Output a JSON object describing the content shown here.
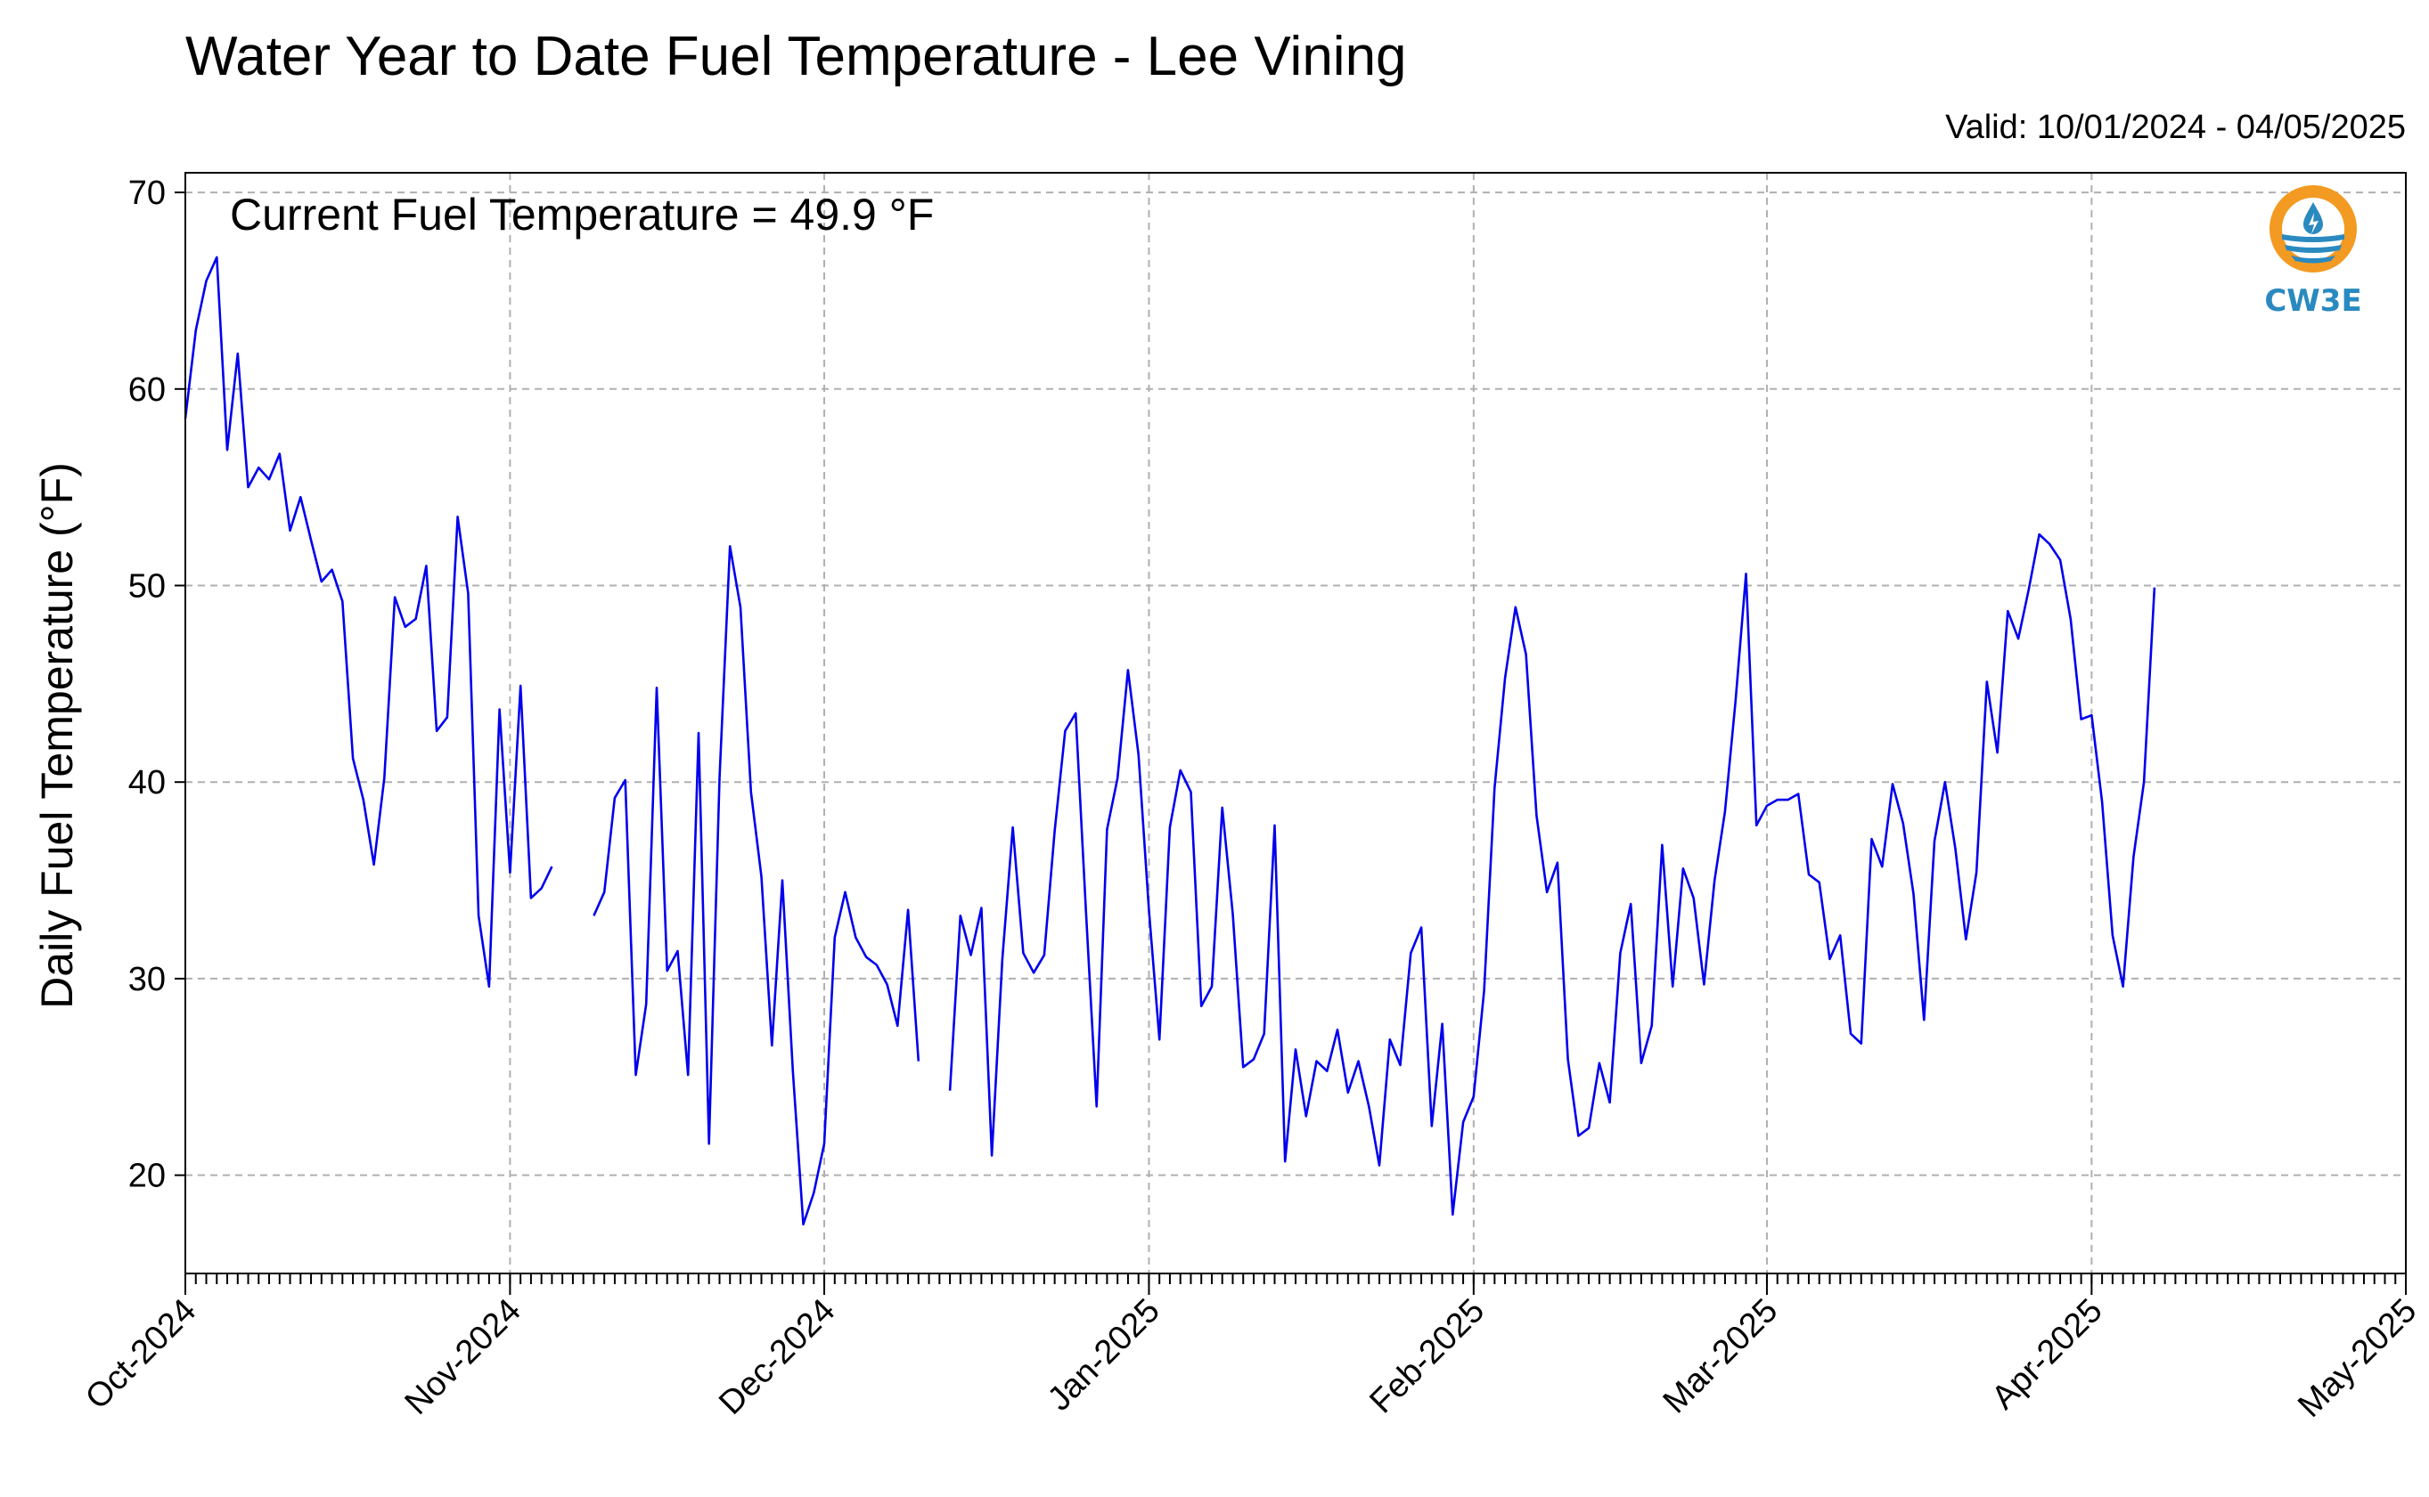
{
  "chart_data": {
    "type": "line",
    "title": "Water Year to Date Fuel Temperature - Lee Vining",
    "subtitle": "Valid: 10/01/2024 - 04/05/2025",
    "annotation": "Current Fuel Temperature = 49.9 °F",
    "xlabel": "",
    "ylabel": "Daily Fuel Temperature (°F)",
    "ylim": [
      15,
      71
    ],
    "yticks": [
      20,
      30,
      40,
      50,
      60,
      70
    ],
    "xlim": [
      "2024-10-01",
      "2025-05-01"
    ],
    "xticks": [
      {
        "label": "Oct-2024",
        "date": "2024-10-01"
      },
      {
        "label": "Nov-2024",
        "date": "2024-11-01"
      },
      {
        "label": "Dec-2024",
        "date": "2024-12-01"
      },
      {
        "label": "Jan-2025",
        "date": "2025-01-01"
      },
      {
        "label": "Feb-2025",
        "date": "2025-02-01"
      },
      {
        "label": "Mar-2025",
        "date": "2025-03-01"
      },
      {
        "label": "Apr-2025",
        "date": "2025-04-01"
      },
      {
        "label": "May-2025",
        "date": "2025-05-01"
      }
    ],
    "grid": true,
    "line_color": "#0000ee",
    "series": [
      {
        "start_date": "2024-10-01",
        "values": [
          58.5,
          63,
          65.5,
          66.7,
          56.9,
          61.8,
          55,
          56,
          55.4,
          56.7,
          52.8,
          54.5,
          52.3,
          50.2,
          50.8,
          49.2,
          41.2,
          39.1,
          35.8,
          40.2,
          49.4,
          47.9,
          48.3,
          51,
          42.6,
          43.3,
          53.5,
          49.6,
          33.2,
          29.6,
          43.7,
          35.4,
          44.9,
          34.1,
          34.6,
          35.7,
          null,
          null,
          null,
          33.2,
          34.4,
          39.2,
          40.1,
          25.1,
          28.7,
          44.8,
          30.4,
          31.4,
          25.1,
          42.5,
          21.6,
          40.2,
          52,
          48.9,
          39.5,
          35.2,
          26.6,
          35,
          25.3,
          17.5,
          19.1,
          21.6,
          32.1,
          34.4,
          32.1,
          31.1,
          30.7,
          29.7,
          27.6,
          33.5,
          25.8,
          null,
          null,
          24.3,
          33.2,
          31.2,
          33.6,
          21,
          31,
          37.7,
          31.3,
          30.3,
          31.2,
          37.5,
          42.6,
          43.5,
          33.3,
          23.5,
          37.6,
          40.2,
          45.7,
          41.4,
          33.5,
          26.9,
          37.7,
          40.6,
          39.5,
          28.6,
          29.6,
          38.7,
          33.3,
          25.5,
          25.9,
          27.2,
          37.8,
          20.7,
          26.4,
          23,
          25.8,
          25.3,
          27.4,
          24.2,
          25.8,
          23.5,
          20.5,
          26.9,
          25.6,
          31.3,
          32.6,
          22.5,
          27.7,
          18,
          22.7,
          24,
          29.4,
          39.7,
          45.3,
          48.9,
          46.5,
          38.3,
          34.4,
          35.9,
          25.9,
          22,
          22.4,
          25.7,
          23.7,
          31.3,
          33.8,
          25.7,
          27.6,
          36.8,
          29.6,
          35.6,
          34.1,
          29.7,
          35,
          38.5,
          44.1,
          50.6,
          37.8,
          38.8,
          39.1,
          39.1,
          39.4,
          35.3,
          34.9,
          31,
          32.2,
          27.2,
          26.7,
          37.1,
          35.7,
          39.9,
          37.9,
          34.3,
          27.9,
          37,
          40,
          36.6,
          32,
          35.4,
          45.1,
          41.5,
          48.7,
          47.3,
          49.8,
          52.6,
          52.1,
          51.3,
          48.3,
          43.2,
          43.4,
          39,
          32.2,
          29.6,
          36.2,
          40,
          49.9
        ]
      }
    ]
  },
  "logo": {
    "text": "CW3E",
    "ring_color": "#f39a22",
    "blue_color": "#2a8ac0"
  }
}
